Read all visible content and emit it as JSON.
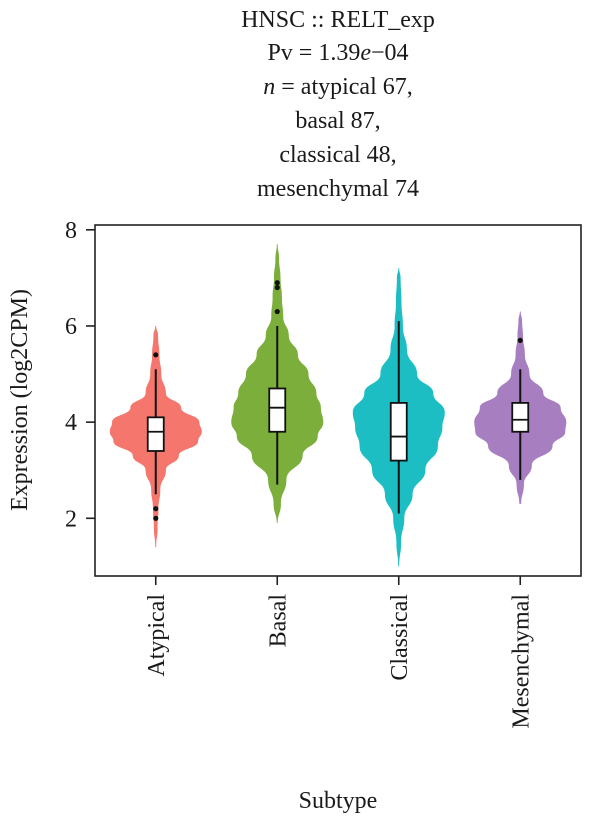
{
  "chart_data": {
    "type": "violin",
    "title_lines": [
      "HNSC :: RELT_exp",
      "Pv = 1.39e−04",
      "n = atypical 67,",
      "basal 87,",
      "classical 48,",
      "mesenchymal 74"
    ],
    "xlabel": "Subtype",
    "ylabel": "Expression (log2CPM)",
    "ylim": [
      0.8,
      8.1
    ],
    "yticks": [
      2,
      4,
      6,
      8
    ],
    "categories": [
      "Atypical",
      "Basal",
      "Classical",
      "Mesenchymal"
    ],
    "colors": [
      "#F4766D",
      "#7CAE3B",
      "#1DBDC4",
      "#A77FC0"
    ],
    "series": [
      {
        "name": "Atypical",
        "min": 1.4,
        "max": 6.0,
        "q1": 3.4,
        "median": 3.8,
        "q3": 4.1,
        "whisker_low": 2.5,
        "whisker_high": 5.1,
        "outliers": [
          2.0,
          2.2,
          5.4
        ],
        "density": [
          [
            1.4,
            0.01
          ],
          [
            1.8,
            0.04
          ],
          [
            2.2,
            0.06
          ],
          [
            2.6,
            0.1
          ],
          [
            3.0,
            0.22
          ],
          [
            3.3,
            0.5
          ],
          [
            3.6,
            0.92
          ],
          [
            3.8,
            1.0
          ],
          [
            4.0,
            0.95
          ],
          [
            4.3,
            0.55
          ],
          [
            4.6,
            0.22
          ],
          [
            5.0,
            0.12
          ],
          [
            5.4,
            0.08
          ],
          [
            5.8,
            0.05
          ],
          [
            6.0,
            0.01
          ]
        ]
      },
      {
        "name": "Basal",
        "min": 1.9,
        "max": 7.7,
        "q1": 3.8,
        "median": 4.3,
        "q3": 4.7,
        "whisker_low": 2.7,
        "whisker_high": 6.0,
        "outliers": [
          6.3,
          6.8,
          6.9
        ],
        "density": [
          [
            1.9,
            0.01
          ],
          [
            2.3,
            0.08
          ],
          [
            2.8,
            0.2
          ],
          [
            3.3,
            0.55
          ],
          [
            3.7,
            0.88
          ],
          [
            4.0,
            1.0
          ],
          [
            4.3,
            0.95
          ],
          [
            4.6,
            0.85
          ],
          [
            5.0,
            0.68
          ],
          [
            5.4,
            0.45
          ],
          [
            5.8,
            0.25
          ],
          [
            6.2,
            0.13
          ],
          [
            6.6,
            0.1
          ],
          [
            7.0,
            0.07
          ],
          [
            7.4,
            0.04
          ],
          [
            7.7,
            0.01
          ]
        ]
      },
      {
        "name": "Classical",
        "min": 1.0,
        "max": 7.2,
        "q1": 3.2,
        "median": 3.7,
        "q3": 4.4,
        "whisker_low": 2.1,
        "whisker_high": 6.1,
        "outliers": [],
        "density": [
          [
            1.0,
            0.01
          ],
          [
            1.5,
            0.05
          ],
          [
            2.0,
            0.12
          ],
          [
            2.5,
            0.3
          ],
          [
            3.0,
            0.58
          ],
          [
            3.5,
            0.85
          ],
          [
            3.9,
            0.95
          ],
          [
            4.2,
            1.0
          ],
          [
            4.6,
            0.75
          ],
          [
            5.0,
            0.4
          ],
          [
            5.5,
            0.18
          ],
          [
            6.0,
            0.09
          ],
          [
            6.5,
            0.06
          ],
          [
            7.0,
            0.04
          ],
          [
            7.2,
            0.01
          ]
        ]
      },
      {
        "name": "Mesenchymal",
        "min": 2.3,
        "max": 6.3,
        "q1": 3.8,
        "median": 4.05,
        "q3": 4.4,
        "whisker_low": 2.8,
        "whisker_high": 5.1,
        "outliers": [
          5.7
        ],
        "density": [
          [
            2.3,
            0.02
          ],
          [
            2.7,
            0.08
          ],
          [
            3.1,
            0.25
          ],
          [
            3.5,
            0.7
          ],
          [
            3.8,
            0.98
          ],
          [
            4.0,
            1.0
          ],
          [
            4.3,
            0.88
          ],
          [
            4.6,
            0.5
          ],
          [
            5.0,
            0.2
          ],
          [
            5.4,
            0.1
          ],
          [
            5.8,
            0.06
          ],
          [
            6.1,
            0.04
          ],
          [
            6.3,
            0.01
          ]
        ]
      }
    ]
  }
}
